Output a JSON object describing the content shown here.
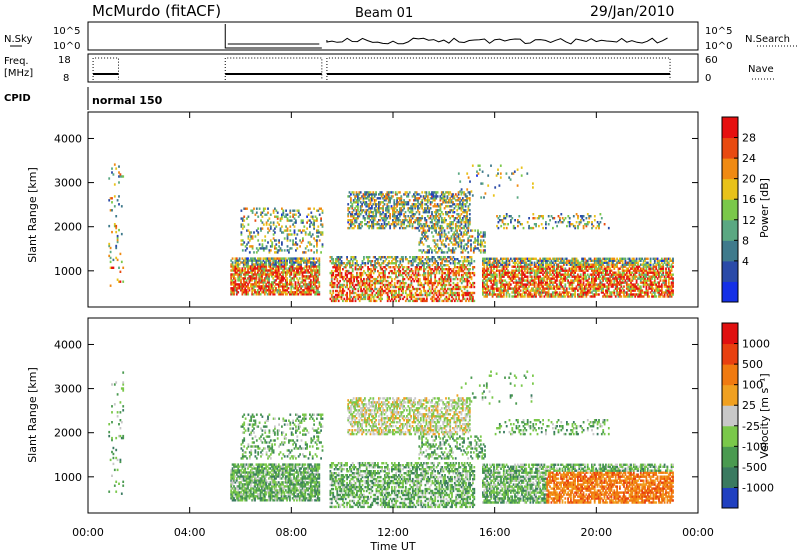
{
  "header": {
    "station": "McMurdo (fitACF)",
    "beam": "Beam 01",
    "date": "29/Jan/2010"
  },
  "params": {
    "nsky_label": "N.Sky",
    "nsky_ticks": [
      "10^5",
      "10^0"
    ],
    "nsearch_label": "N.Search",
    "freq_label": "Freq.",
    "freq_unit": "[MHz]",
    "freq_ticks": [
      "18",
      "8"
    ],
    "nave_label": "Nave",
    "nave_ticks": [
      "60",
      "0"
    ],
    "cpid_label": "CPID",
    "cpid_value": "normal 150"
  },
  "chart_data": [
    {
      "type": "heatmap",
      "name": "power",
      "ylabel": "Slant Range [km]",
      "yticks": [
        1000,
        2000,
        3000,
        4000
      ],
      "ylim": [
        180,
        4600
      ],
      "xlim": [
        0,
        24
      ],
      "colorbar": {
        "label": "Power [dB]",
        "ticks": [
          "28",
          "24",
          "20",
          "16",
          "12",
          "8",
          "4"
        ],
        "colors": [
          "#1530e6",
          "#2a4aa8",
          "#3f7a8c",
          "#5aa882",
          "#7ac84a",
          "#e8c21a",
          "#f08a12",
          "#e84a10",
          "#e61010"
        ]
      }
    },
    {
      "type": "heatmap",
      "name": "velocity",
      "ylabel": "Slant Range [km]",
      "yticks": [
        1000,
        2000,
        3000,
        4000
      ],
      "ylim": [
        180,
        4600
      ],
      "xlim": [
        0,
        24
      ],
      "xlabel": "Time UT",
      "xticks": [
        "00:00",
        "04:00",
        "08:00",
        "12:00",
        "16:00",
        "20:00",
        "00:00"
      ],
      "colorbar": {
        "label": "Velocity [m s⁻¹]",
        "ticks": [
          "1000",
          "500",
          "100",
          "25",
          "-25",
          "-100",
          "-500",
          "-1000"
        ],
        "colors": [
          "#2040c0",
          "#3a7a60",
          "#4a9a50",
          "#7ac84a",
          "#c8c8c8",
          "#f0a020",
          "#f07a10",
          "#e84010",
          "#e01010"
        ]
      }
    }
  ]
}
